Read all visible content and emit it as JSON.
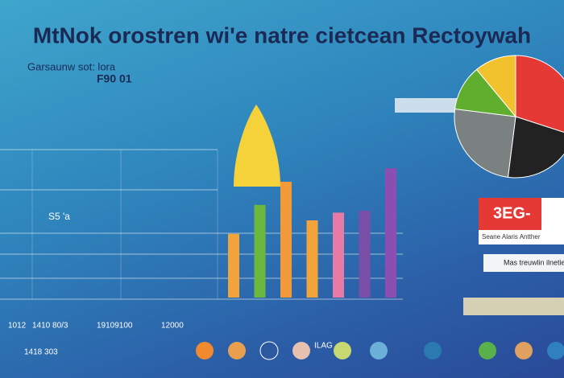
{
  "header": {
    "title": "MtNok orostren wi'e natre cietcean Rectoywah",
    "subtitle": "Garsaunw sot: lora",
    "subvalue": "F90 01"
  },
  "chart_label": "S5 'a",
  "bars": [
    {
      "color": "#f2a33a",
      "value": 33
    },
    {
      "color": "#6cb83f",
      "value": 48
    },
    {
      "color": "#f29a3a",
      "value": 60
    },
    {
      "color": "#f2a33a",
      "value": 40
    },
    {
      "color": "#e87aa6",
      "value": 44
    },
    {
      "color": "#7a4fa8",
      "value": 45
    },
    {
      "color": "#8a4fb0",
      "value": 67
    }
  ],
  "pie": [
    {
      "color": "#e53935",
      "value": 30
    },
    {
      "color": "#222222",
      "value": 22
    },
    {
      "color": "#7b8080",
      "value": 25
    },
    {
      "color": "#5fae2e",
      "value": 12
    },
    {
      "color": "#f2c12e",
      "value": 11
    }
  ],
  "badge": {
    "title": "3EG-",
    "caption": "Seane Alaris Antther"
  },
  "note": "Mas treuwlin ilnetier",
  "axis_labels": [
    "1410 80/3",
    "19109100",
    "12000",
    "1012"
  ],
  "footer_labels": [
    "1418 303",
    "ILAG"
  ]
}
